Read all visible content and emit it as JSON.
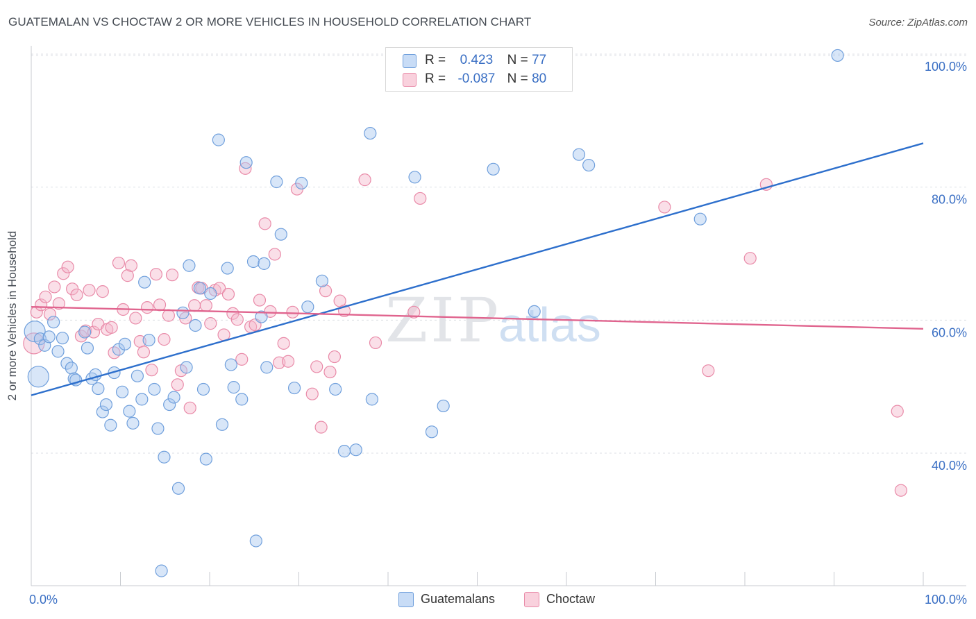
{
  "header": {
    "title": "GUATEMALAN VS CHOCTAW 2 OR MORE VEHICLES IN HOUSEHOLD CORRELATION CHART",
    "source": "Source: ZipAtlas.com"
  },
  "watermark": {
    "zip": "ZIP",
    "atlas": "atlas"
  },
  "legend": {
    "rows": [
      {
        "r_label": "R =",
        "r_value": "0.423",
        "n_label": "N =",
        "n_value": "77",
        "color": "#a9c8f0"
      },
      {
        "r_label": "R =",
        "r_value": "-0.087",
        "n_label": "N =",
        "n_value": "80",
        "color": "#f5b8cb"
      }
    ]
  },
  "colors": {
    "blue_fill": "#a9c8f0",
    "blue_stroke": "#6f9fdc",
    "blue_line": "#2d6fcc",
    "pink_fill": "#f5b8cb",
    "pink_stroke": "#e98aa8",
    "pink_line": "#e0648e",
    "tick_label": "#3a6fc4"
  },
  "chart_data": {
    "type": "scatter",
    "title": "GUATEMALAN VS CHOCTAW 2 OR MORE VEHICLES IN HOUSEHOLD CORRELATION CHART",
    "xlabel": "",
    "ylabel": "2 or more Vehicles in Household",
    "xlim": [
      0,
      100
    ],
    "ylim": [
      20,
      102
    ],
    "x_tick_labels": [
      {
        "value": 0,
        "label": "0.0%"
      },
      {
        "value": 100,
        "label": "100.0%"
      }
    ],
    "y_tick_labels": [
      {
        "value": 40,
        "label": "40.0%"
      },
      {
        "value": 60,
        "label": "60.0%"
      },
      {
        "value": 80,
        "label": "80.0%"
      },
      {
        "value": 100,
        "label": "100.0%"
      }
    ],
    "grid": true,
    "legend_position": "top-center",
    "series": [
      {
        "name": "Guatemalans",
        "r": 0.423,
        "n": 77,
        "trend": {
          "x0": 0,
          "y0": 48.7,
          "x1": 100,
          "y1": 86.6
        },
        "points": [
          [
            0.4,
            58.3
          ],
          [
            0.8,
            51.5
          ],
          [
            1.0,
            57.2
          ],
          [
            1.5,
            56.2
          ],
          [
            2.0,
            57.5
          ],
          [
            2.5,
            59.7
          ],
          [
            3.0,
            55.3
          ],
          [
            3.5,
            57.3
          ],
          [
            4.0,
            53.5
          ],
          [
            4.5,
            52.8
          ],
          [
            4.8,
            51.2
          ],
          [
            5.0,
            51.0
          ],
          [
            6.0,
            58.2
          ],
          [
            6.3,
            55.8
          ],
          [
            6.8,
            51.2
          ],
          [
            7.2,
            51.8
          ],
          [
            7.5,
            49.7
          ],
          [
            8.0,
            46.2
          ],
          [
            8.4,
            47.3
          ],
          [
            8.9,
            44.2
          ],
          [
            9.3,
            52.1
          ],
          [
            9.8,
            55.6
          ],
          [
            10.2,
            49.2
          ],
          [
            10.5,
            56.4
          ],
          [
            11.0,
            46.3
          ],
          [
            11.4,
            44.5
          ],
          [
            11.9,
            51.6
          ],
          [
            12.4,
            48.1
          ],
          [
            12.7,
            65.7
          ],
          [
            13.2,
            57.0
          ],
          [
            13.8,
            49.6
          ],
          [
            14.2,
            43.7
          ],
          [
            14.6,
            22.3
          ],
          [
            14.9,
            39.4
          ],
          [
            15.5,
            47.3
          ],
          [
            16.0,
            48.4
          ],
          [
            16.5,
            34.7
          ],
          [
            17.0,
            61.1
          ],
          [
            17.4,
            52.9
          ],
          [
            17.7,
            68.2
          ],
          [
            18.4,
            59.2
          ],
          [
            18.9,
            64.8
          ],
          [
            19.3,
            49.6
          ],
          [
            19.6,
            39.1
          ],
          [
            20.1,
            64.0
          ],
          [
            21.0,
            87.1
          ],
          [
            21.4,
            44.3
          ],
          [
            22.0,
            67.8
          ],
          [
            22.4,
            53.3
          ],
          [
            22.7,
            49.9
          ],
          [
            23.6,
            48.1
          ],
          [
            24.1,
            83.7
          ],
          [
            24.9,
            68.8
          ],
          [
            25.2,
            26.8
          ],
          [
            25.8,
            60.5
          ],
          [
            26.1,
            68.5
          ],
          [
            26.4,
            52.9
          ],
          [
            27.5,
            80.8
          ],
          [
            28.0,
            72.9
          ],
          [
            29.5,
            49.8
          ],
          [
            30.3,
            80.6
          ],
          [
            31.0,
            62.0
          ],
          [
            32.6,
            65.9
          ],
          [
            34.1,
            49.6
          ],
          [
            35.1,
            40.3
          ],
          [
            36.4,
            40.5
          ],
          [
            38.0,
            88.1
          ],
          [
            38.2,
            48.1
          ],
          [
            43.0,
            81.5
          ],
          [
            44.9,
            43.2
          ],
          [
            46.2,
            47.1
          ],
          [
            51.8,
            82.7
          ],
          [
            56.4,
            61.3
          ],
          [
            61.4,
            84.9
          ],
          [
            62.5,
            83.3
          ],
          [
            75.0,
            75.2
          ],
          [
            90.4,
            99.8
          ]
        ]
      },
      {
        "name": "Choctaw",
        "r": -0.087,
        "n": 80,
        "trend": {
          "x0": 0,
          "y0": 62.0,
          "x1": 100,
          "y1": 58.7
        },
        "points": [
          [
            0.3,
            56.5
          ],
          [
            0.6,
            61.2
          ],
          [
            1.1,
            62.3
          ],
          [
            1.6,
            63.5
          ],
          [
            2.1,
            60.9
          ],
          [
            2.6,
            65.0
          ],
          [
            3.1,
            62.5
          ],
          [
            3.6,
            67.0
          ],
          [
            4.1,
            68.0
          ],
          [
            4.6,
            64.7
          ],
          [
            5.1,
            63.8
          ],
          [
            5.6,
            57.6
          ],
          [
            6.1,
            58.4
          ],
          [
            6.5,
            64.5
          ],
          [
            7.0,
            58.2
          ],
          [
            7.5,
            59.4
          ],
          [
            8.0,
            64.3
          ],
          [
            8.5,
            58.6
          ],
          [
            9.0,
            58.9
          ],
          [
            9.3,
            55.1
          ],
          [
            9.8,
            68.6
          ],
          [
            10.3,
            61.6
          ],
          [
            10.8,
            66.7
          ],
          [
            11.2,
            68.2
          ],
          [
            11.7,
            60.3
          ],
          [
            12.2,
            56.8
          ],
          [
            12.6,
            55.2
          ],
          [
            13.0,
            61.9
          ],
          [
            13.5,
            52.5
          ],
          [
            14.0,
            66.9
          ],
          [
            14.4,
            62.3
          ],
          [
            14.9,
            57.1
          ],
          [
            15.4,
            60.7
          ],
          [
            15.8,
            66.8
          ],
          [
            16.4,
            50.3
          ],
          [
            16.8,
            52.4
          ],
          [
            17.3,
            60.3
          ],
          [
            17.8,
            46.8
          ],
          [
            18.3,
            62.2
          ],
          [
            18.7,
            64.9
          ],
          [
            19.1,
            64.8
          ],
          [
            19.6,
            62.2
          ],
          [
            20.1,
            59.5
          ],
          [
            20.6,
            64.5
          ],
          [
            21.1,
            64.8
          ],
          [
            21.6,
            57.8
          ],
          [
            22.1,
            63.9
          ],
          [
            22.6,
            61.0
          ],
          [
            23.1,
            60.1
          ],
          [
            23.6,
            54.1
          ],
          [
            24.0,
            82.8
          ],
          [
            24.6,
            59.0
          ],
          [
            25.1,
            59.3
          ],
          [
            25.6,
            63.0
          ],
          [
            26.2,
            74.5
          ],
          [
            26.8,
            61.3
          ],
          [
            27.3,
            69.9
          ],
          [
            27.8,
            53.6
          ],
          [
            28.3,
            56.5
          ],
          [
            28.8,
            53.8
          ],
          [
            29.3,
            61.2
          ],
          [
            29.8,
            79.7
          ],
          [
            31.5,
            48.9
          ],
          [
            32.0,
            53.0
          ],
          [
            32.5,
            43.9
          ],
          [
            33.0,
            64.4
          ],
          [
            33.5,
            52.2
          ],
          [
            34.0,
            54.5
          ],
          [
            34.6,
            62.9
          ],
          [
            35.1,
            61.4
          ],
          [
            37.4,
            81.1
          ],
          [
            38.6,
            56.6
          ],
          [
            42.9,
            61.2
          ],
          [
            43.6,
            78.3
          ],
          [
            71.0,
            77.0
          ],
          [
            75.9,
            52.4
          ],
          [
            80.6,
            69.3
          ],
          [
            82.4,
            80.4
          ],
          [
            97.1,
            46.3
          ],
          [
            97.5,
            34.4
          ]
        ]
      }
    ]
  },
  "bottom_legend": {
    "items": [
      {
        "label": "Guatemalans"
      },
      {
        "label": "Choctaw"
      }
    ]
  }
}
